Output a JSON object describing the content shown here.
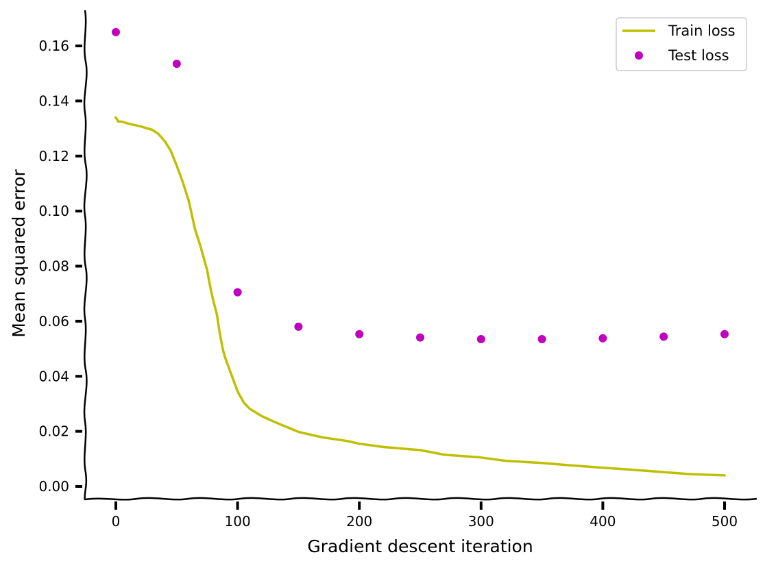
{
  "chart_data": {
    "type": "line",
    "title": "",
    "xlabel": "Gradient descent iteration",
    "ylabel": "Mean squared error",
    "xlim": [
      -25,
      525
    ],
    "ylim": [
      -0.004,
      0.173
    ],
    "xticks": [
      0,
      100,
      200,
      300,
      400,
      500
    ],
    "xtick_labels": [
      "0",
      "100",
      "200",
      "300",
      "400",
      "500"
    ],
    "yticks": [
      0.0,
      0.02,
      0.04,
      0.06,
      0.08,
      0.1,
      0.12,
      0.14,
      0.16
    ],
    "ytick_labels": [
      "0.00",
      "0.02",
      "0.04",
      "0.06",
      "0.08",
      "0.10",
      "0.12",
      "0.14",
      "0.16"
    ],
    "grid": false,
    "legend_position": "top-right",
    "series": [
      {
        "name": "Train loss",
        "style": "line",
        "color": "#bfbf00",
        "x": [
          0,
          2,
          5,
          10,
          20,
          30,
          35,
          40,
          45,
          50,
          55,
          60,
          65,
          70,
          75,
          78,
          80,
          83,
          85,
          88,
          90,
          95,
          100,
          105,
          110,
          120,
          130,
          150,
          170,
          190,
          200,
          220,
          250,
          270,
          300,
          320,
          350,
          370,
          400,
          420,
          450,
          470,
          500
        ],
        "y": [
          0.134,
          0.1325,
          0.1325,
          0.1318,
          0.1308,
          0.1295,
          0.128,
          0.1255,
          0.122,
          0.1165,
          0.1105,
          0.1035,
          0.0935,
          0.0865,
          0.0785,
          0.0715,
          0.0675,
          0.0625,
          0.0565,
          0.0495,
          0.0465,
          0.0405,
          0.0345,
          0.0305,
          0.0282,
          0.0255,
          0.0235,
          0.0198,
          0.0178,
          0.0165,
          0.0155,
          0.0143,
          0.0132,
          0.0115,
          0.0105,
          0.0093,
          0.0085,
          0.0078,
          0.0068,
          0.0062,
          0.0052,
          0.0045,
          0.004
        ]
      },
      {
        "name": "Test loss",
        "style": "points",
        "color": "#bf00bf",
        "x": [
          0,
          50,
          100,
          150,
          200,
          250,
          300,
          350,
          400,
          450,
          500
        ],
        "y": [
          0.165,
          0.1535,
          0.0705,
          0.058,
          0.0553,
          0.0541,
          0.0535,
          0.0535,
          0.0538,
          0.0544,
          0.0553
        ]
      }
    ]
  }
}
